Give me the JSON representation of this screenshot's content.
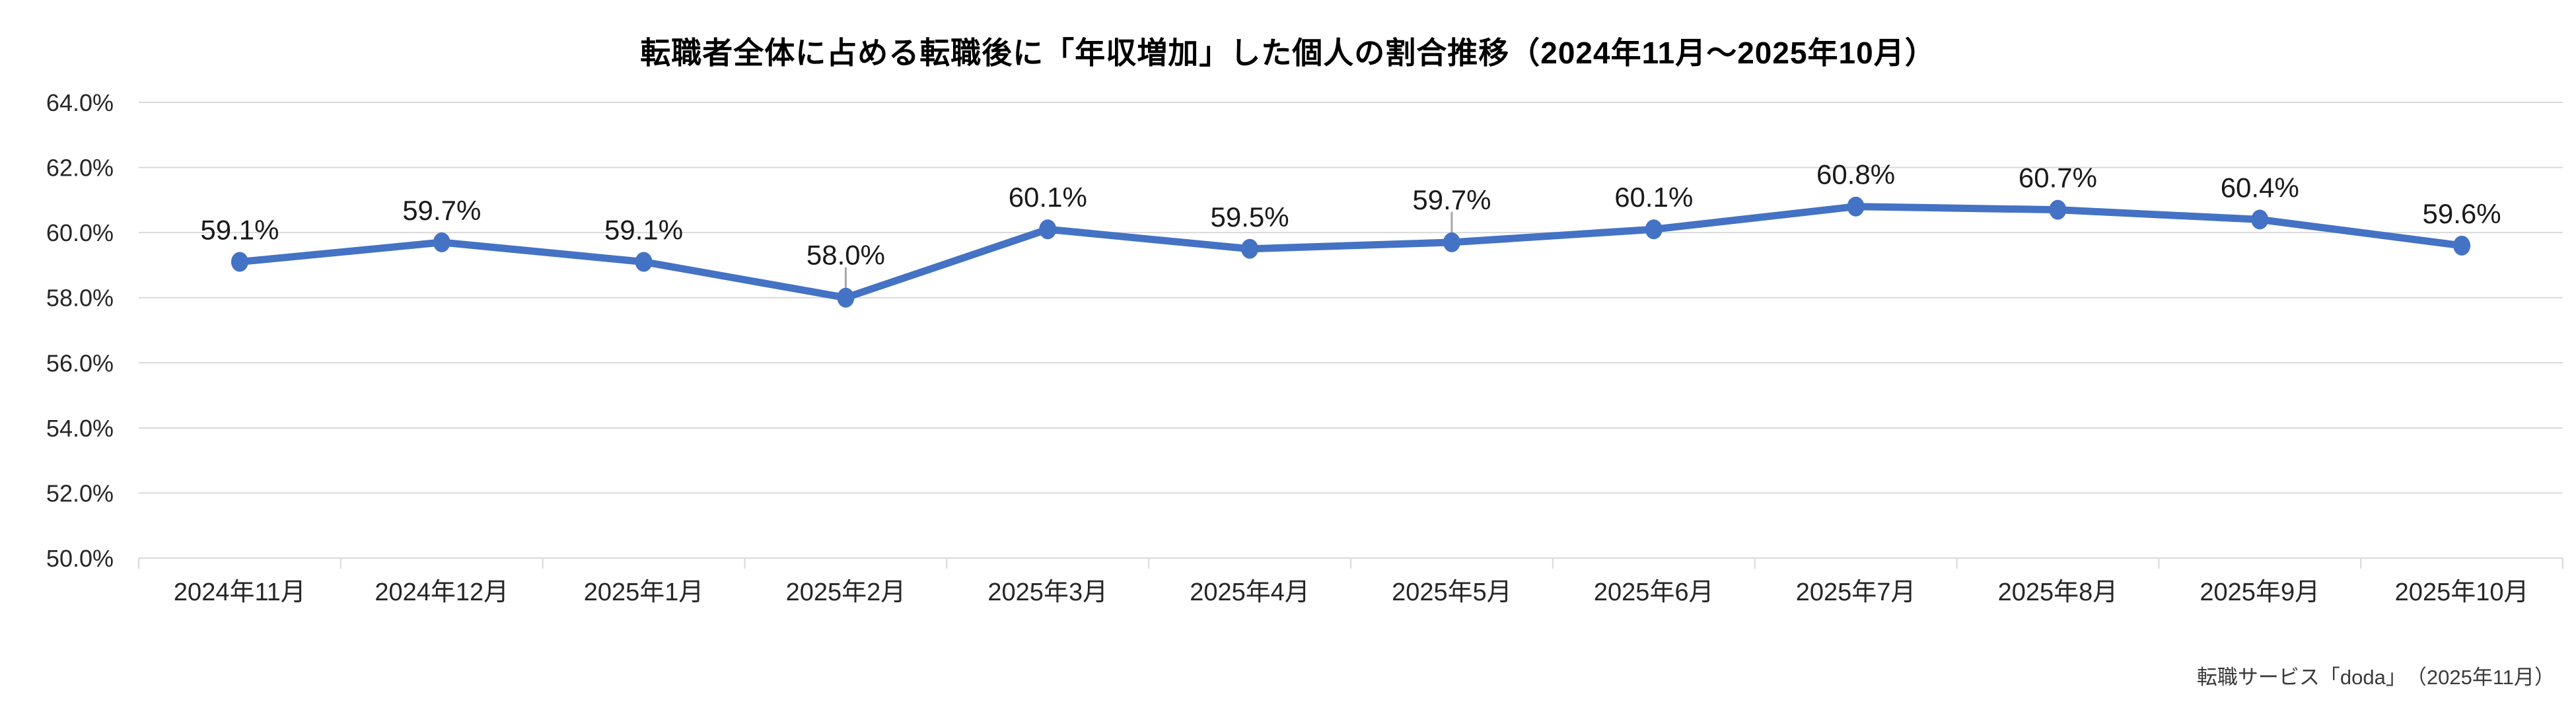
{
  "source": "転職サービス「doda」　（2025年11月）",
  "chart_data": {
    "type": "line",
    "title": "転職者全体に占める転職後に「年収増加」した個人の割合推移（2024年11月～2025年10月）",
    "categories": [
      "2024年11月",
      "2024年12月",
      "2025年1月",
      "2025年2月",
      "2025年3月",
      "2025年4月",
      "2025年5月",
      "2025年6月",
      "2025年7月",
      "2025年8月",
      "2025年9月",
      "2025年10月"
    ],
    "values": [
      59.1,
      59.7,
      59.1,
      58.0,
      60.1,
      59.5,
      59.7,
      60.1,
      60.8,
      60.7,
      60.4,
      59.6
    ],
    "point_labels": [
      "59.1%",
      "59.7%",
      "59.1%",
      "58.0%",
      "60.1%",
      "59.5%",
      "59.7%",
      "60.1%",
      "60.8%",
      "60.7%",
      "60.4%",
      "59.6%"
    ],
    "xlabel": "",
    "ylabel": "",
    "ylim": [
      50,
      64
    ],
    "y_tick_values": [
      50,
      52,
      54,
      56,
      58,
      60,
      62,
      64
    ],
    "y_tick_labels": [
      "50.0%",
      "52.0%",
      "54.0%",
      "56.0%",
      "58.0%",
      "60.0%",
      "62.0%",
      "64.0%"
    ],
    "grid": true,
    "legend": "none",
    "line_color": "#4472C4",
    "marker": "circle",
    "grid_color": "#D9D9D9",
    "axis_color": "#D9D9D9",
    "tick_label_color": "#262626",
    "data_label_color": "#1a1a1a",
    "label_leader_line_indices": [
      3,
      6
    ],
    "leader_line_color": "#A6A6A6"
  }
}
